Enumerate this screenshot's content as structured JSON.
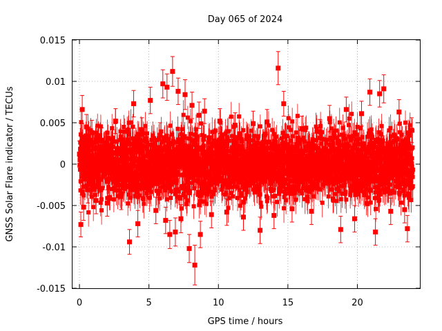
{
  "chart_data": {
    "type": "scatter",
    "title": "Day 065 of 2024",
    "xlabel": "GPS time / hours",
    "ylabel": "GNSS Solar Flare indicator / TECUs",
    "xlim": [
      -0.5,
      24.5
    ],
    "ylim": [
      -0.015,
      0.015
    ],
    "xticks": [
      0,
      5,
      10,
      15,
      20
    ],
    "xtick_labels": [
      "0",
      "5",
      "10",
      "15",
      "20"
    ],
    "yticks": [
      -0.015,
      -0.01,
      -0.005,
      0,
      0.005,
      0.01,
      0.015
    ],
    "ytick_labels": [
      "-0.015",
      "-0.01",
      "-0.005",
      "0",
      "0.005",
      "0.01",
      "0.015"
    ],
    "grid": true,
    "legend": "none",
    "series_color": "#ff0000",
    "series": [
      {
        "description_free": true,
        "x": [
          0.0,
          0.1,
          0.2,
          0.3,
          0.5,
          0.6,
          0.9,
          1.2,
          1.6,
          2.0,
          2.6,
          3.0,
          3.6,
          3.9,
          4.2,
          4.5,
          5.1,
          5.5,
          5.8,
          6.0,
          6.2,
          6.3,
          6.5,
          6.7,
          6.9,
          7.1,
          7.3,
          7.6,
          7.9,
          8.1,
          8.3,
          8.6,
          8.7,
          9.0,
          9.5,
          10.1,
          10.6,
          11.2,
          11.8,
          12.5,
          13.0,
          13.5,
          14.0,
          14.3,
          14.7,
          15.3,
          16.0,
          16.7,
          17.3,
          18.0,
          18.8,
          19.2,
          19.8,
          20.3,
          20.9,
          21.3,
          21.6,
          21.9,
          22.4,
          23.0,
          23.4,
          23.6,
          23.9
        ],
        "y": [
          0.0012,
          -0.0073,
          0.0066,
          -0.0052,
          0.0045,
          -0.0031,
          0.0038,
          -0.0044,
          0.0029,
          -0.0047,
          0.0052,
          -0.0039,
          -0.0094,
          0.0073,
          -0.0072,
          0.0041,
          0.0077,
          -0.0056,
          0.0035,
          0.0097,
          -0.0068,
          0.0093,
          -0.0085,
          0.0112,
          -0.0082,
          0.0088,
          -0.0066,
          0.0084,
          -0.0102,
          0.0071,
          -0.0122,
          0.0059,
          -0.0085,
          0.0064,
          -0.0061,
          0.0052,
          -0.0058,
          0.0047,
          -0.0064,
          0.0049,
          -0.008,
          0.0051,
          -0.0062,
          0.0116,
          0.0073,
          -0.0054,
          0.0043,
          -0.0057,
          0.0039,
          0.0055,
          -0.0079,
          0.0066,
          -0.0066,
          0.0061,
          0.0087,
          -0.0082,
          0.0085,
          0.0091,
          -0.0057,
          0.0063,
          -0.0055,
          -0.0078,
          0.0041
        ],
        "error": [
          0.0016,
          0.0015,
          0.0017,
          0.0016,
          0.0015,
          0.0016,
          0.0015,
          0.0016,
          0.0015,
          0.0016,
          0.0015,
          0.0016,
          0.0015,
          0.0016,
          0.0016,
          0.0015,
          0.0016,
          0.0016,
          0.0015,
          0.0017,
          0.0016,
          0.0016,
          0.0017,
          0.0018,
          0.0017,
          0.0016,
          0.0017,
          0.0018,
          0.0017,
          0.0016,
          0.0024,
          0.0016,
          0.0016,
          0.0015,
          0.0016,
          0.0015,
          0.0016,
          0.0015,
          0.0016,
          0.0015,
          0.0016,
          0.0015,
          0.0016,
          0.002,
          0.0015,
          0.0016,
          0.0015,
          0.0016,
          0.0015,
          0.0016,
          0.0016,
          0.0015,
          0.0016,
          0.0015,
          0.0016,
          0.0016,
          0.0016,
          0.0017,
          0.0016,
          0.0015,
          0.0016,
          0.0016,
          0.0015
        ]
      }
    ],
    "dense_band": {
      "x_range": [
        0.0,
        24.0
      ],
      "y_center": 0.0,
      "y_spread": 0.0045,
      "count": 2880
    }
  }
}
